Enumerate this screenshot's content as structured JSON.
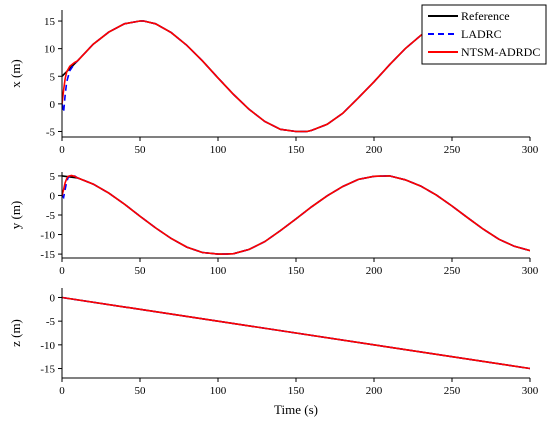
{
  "chart_data": [
    {
      "type": "line",
      "ylabel": "x (m)",
      "xlabel": "",
      "xlim": [
        0,
        300
      ],
      "ylim": [
        -6,
        17
      ],
      "xticks": [
        0,
        50,
        100,
        150,
        200,
        250,
        300
      ],
      "yticks": [
        -5,
        0,
        5,
        10,
        15
      ],
      "grid": false,
      "legend": "top-right",
      "series": [
        {
          "name": "Reference",
          "color": "#000000",
          "style": "solid",
          "x": [
            0,
            10,
            20,
            30,
            40,
            50,
            52.4,
            60,
            70,
            80,
            90,
            100,
            110,
            120,
            130,
            140,
            150,
            157.1,
            160,
            170,
            180,
            190,
            200,
            210,
            220,
            230,
            240,
            250,
            261.8,
            270,
            280,
            290,
            300
          ],
          "y": [
            5.0,
            7.8,
            10.8,
            13.0,
            14.5,
            15.0,
            15.0,
            14.5,
            12.9,
            10.6,
            7.8,
            4.7,
            1.7,
            -1.0,
            -3.2,
            -4.6,
            -5.0,
            -5.0,
            -4.8,
            -3.7,
            -1.7,
            1.1,
            4.0,
            7.1,
            10.0,
            12.4,
            14.1,
            14.9,
            15.0,
            14.7,
            13.6,
            11.4,
            9.0
          ]
        },
        {
          "name": "LADRC",
          "color": "#0000ff",
          "style": "dashed",
          "x": [
            0,
            1,
            2,
            3,
            5,
            8,
            10,
            20,
            30,
            40,
            50,
            52.4,
            60,
            70,
            80,
            90,
            100,
            110,
            120,
            130,
            140,
            150,
            157.1,
            160,
            170,
            180,
            190,
            200,
            210,
            220,
            230,
            240,
            250,
            261.8,
            270,
            280,
            290,
            300
          ],
          "y": [
            0,
            -1.5,
            1.5,
            4.0,
            6.0,
            7.3,
            7.8,
            10.8,
            13.0,
            14.5,
            15.0,
            15.0,
            14.5,
            12.9,
            10.6,
            7.8,
            4.7,
            1.7,
            -1.0,
            -3.2,
            -4.6,
            -5.0,
            -5.0,
            -4.8,
            -3.7,
            -1.7,
            1.1,
            4.0,
            7.1,
            10.0,
            12.4,
            14.1,
            14.9,
            15.0,
            14.7,
            13.6,
            11.4,
            9.0
          ]
        },
        {
          "name": "NTSM-ADRDC",
          "color": "#ff0000",
          "style": "solid",
          "x": [
            0,
            1,
            2,
            3,
            5,
            8,
            10,
            20,
            30,
            40,
            50,
            52.4,
            60,
            70,
            80,
            90,
            100,
            110,
            120,
            130,
            140,
            150,
            157.1,
            160,
            170,
            180,
            190,
            200,
            210,
            220,
            230,
            240,
            250,
            261.8,
            270,
            280,
            290,
            300
          ],
          "y": [
            0,
            2.5,
            4.5,
            5.8,
            6.8,
            7.5,
            7.8,
            10.8,
            13.0,
            14.5,
            15.0,
            15.0,
            14.5,
            12.9,
            10.6,
            7.8,
            4.7,
            1.7,
            -1.0,
            -3.2,
            -4.6,
            -5.0,
            -5.0,
            -4.8,
            -3.7,
            -1.7,
            1.1,
            4.0,
            7.1,
            10.0,
            12.4,
            14.1,
            14.9,
            15.0,
            14.7,
            13.6,
            11.4,
            9.0
          ]
        }
      ]
    },
    {
      "type": "line",
      "ylabel": "y (m)",
      "xlabel": "",
      "xlim": [
        0,
        300
      ],
      "ylim": [
        -16,
        6
      ],
      "xticks": [
        0,
        50,
        100,
        150,
        200,
        250,
        300
      ],
      "yticks": [
        -15,
        -10,
        -5,
        0,
        5
      ],
      "grid": false,
      "series": [
        {
          "name": "Reference",
          "color": "#000000",
          "style": "solid",
          "x": [
            0,
            10,
            20,
            30,
            40,
            50,
            60,
            70,
            80,
            90,
            100,
            105,
            110,
            120,
            130,
            140,
            150,
            160,
            170,
            180,
            190,
            200,
            210,
            220,
            230,
            240,
            250,
            260,
            270,
            280,
            290,
            300
          ],
          "y": [
            5.0,
            4.5,
            2.9,
            0.6,
            -2.2,
            -5.3,
            -8.3,
            -11.0,
            -13.2,
            -14.6,
            -15.0,
            -15.0,
            -14.9,
            -13.8,
            -11.8,
            -9.0,
            -6.0,
            -2.9,
            -0.1,
            2.3,
            4.1,
            4.9,
            5.0,
            4.0,
            2.4,
            0.1,
            -2.7,
            -5.7,
            -8.6,
            -11.2,
            -13.0,
            -14.1
          ]
        },
        {
          "name": "LADRC",
          "color": "#0000ff",
          "style": "dashed",
          "x": [
            0,
            1,
            2,
            3,
            4,
            6,
            8,
            10,
            20,
            30,
            40,
            50,
            60,
            70,
            80,
            90,
            100,
            105,
            110,
            120,
            130,
            140,
            150,
            160,
            170,
            180,
            190,
            200,
            210,
            220,
            230,
            240,
            250,
            260,
            270,
            280,
            290,
            300
          ],
          "y": [
            0,
            -0.5,
            1.5,
            3.5,
            4.6,
            5.2,
            5.0,
            4.5,
            2.9,
            0.6,
            -2.2,
            -5.3,
            -8.3,
            -11.0,
            -13.2,
            -14.6,
            -15.0,
            -15.0,
            -14.9,
            -13.8,
            -11.8,
            -9.0,
            -6.0,
            -2.9,
            -0.1,
            2.3,
            4.1,
            4.9,
            5.0,
            4.0,
            2.4,
            0.1,
            -2.7,
            -5.7,
            -8.6,
            -11.2,
            -13.0,
            -14.1
          ]
        },
        {
          "name": "NTSM-ADRDC",
          "color": "#ff0000",
          "style": "solid",
          "x": [
            0,
            1,
            2,
            3,
            4,
            6,
            8,
            10,
            20,
            30,
            40,
            50,
            60,
            70,
            80,
            90,
            100,
            105,
            110,
            120,
            130,
            140,
            150,
            160,
            170,
            180,
            190,
            200,
            210,
            220,
            230,
            240,
            250,
            260,
            270,
            280,
            290,
            300
          ],
          "y": [
            0,
            1.5,
            3.2,
            4.3,
            4.9,
            5.1,
            4.9,
            4.5,
            2.9,
            0.6,
            -2.2,
            -5.3,
            -8.3,
            -11.0,
            -13.2,
            -14.6,
            -15.0,
            -15.0,
            -14.9,
            -13.8,
            -11.8,
            -9.0,
            -6.0,
            -2.9,
            -0.1,
            2.3,
            4.1,
            4.9,
            5.0,
            4.0,
            2.4,
            0.1,
            -2.7,
            -5.7,
            -8.6,
            -11.2,
            -13.0,
            -14.1
          ]
        }
      ]
    },
    {
      "type": "line",
      "ylabel": "z (m)",
      "xlabel": "Time (s)",
      "xlim": [
        0,
        300
      ],
      "ylim": [
        -17,
        2
      ],
      "xticks": [
        0,
        50,
        100,
        150,
        200,
        250,
        300
      ],
      "yticks": [
        -15,
        -10,
        -5,
        0
      ],
      "grid": false,
      "series": [
        {
          "name": "Reference",
          "color": "#000000",
          "style": "solid",
          "x": [
            0,
            300
          ],
          "y": [
            0,
            -15
          ]
        },
        {
          "name": "LADRC",
          "color": "#0000ff",
          "style": "dashed",
          "x": [
            0,
            300
          ],
          "y": [
            0,
            -15
          ]
        },
        {
          "name": "NTSM-ADRDC",
          "color": "#ff0000",
          "style": "solid",
          "x": [
            0,
            300
          ],
          "y": [
            0,
            -15
          ]
        }
      ]
    }
  ],
  "legend": {
    "items": [
      {
        "label": "Reference",
        "color": "#000000",
        "style": "solid"
      },
      {
        "label": "LADRC",
        "color": "#0000ff",
        "style": "dashed"
      },
      {
        "label": "NTSM-ADRDC",
        "color": "#ff0000",
        "style": "solid"
      }
    ]
  }
}
